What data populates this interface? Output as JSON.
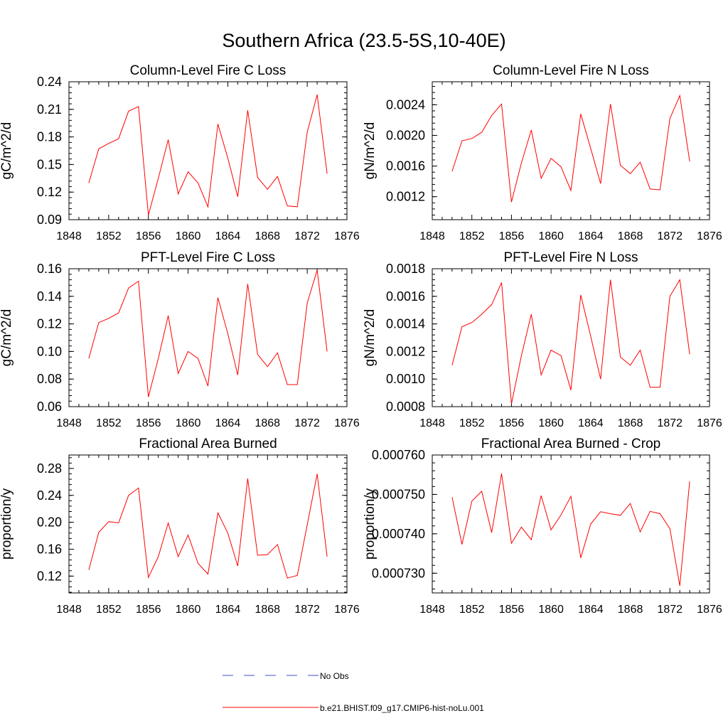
{
  "figure": {
    "title": "Southern Africa (23.5-5S,10-40E)",
    "line_color": "#ff0000",
    "obs_color": "#3c50c8"
  },
  "legend": {
    "placement": "bottom-center",
    "entries": [
      {
        "label": "No Obs",
        "style": "dashed",
        "color": "#3c50c8"
      },
      {
        "label": "b.e21.BHIST.f09_g17.CMIP6-hist-noLu.001",
        "style": "solid",
        "color": "#ff0000"
      }
    ]
  },
  "chart_data": [
    {
      "type": "line",
      "title": "Column-Level Fire C Loss",
      "ylabel": "gC/m^2/d",
      "xlabel": "",
      "xlim": [
        1848,
        1876
      ],
      "ylim": [
        0.09,
        0.24
      ],
      "xticks": [
        1848,
        1852,
        1856,
        1860,
        1864,
        1868,
        1872,
        1876
      ],
      "yticks": [
        "0.09",
        "0.12",
        "0.15",
        "0.18",
        "0.21",
        "0.24"
      ],
      "grid": false,
      "series": [
        {
          "x": [
            1850,
            1851,
            1852,
            1853,
            1854,
            1855,
            1856,
            1857,
            1858,
            1859,
            1860,
            1861,
            1862,
            1863,
            1864,
            1865,
            1866,
            1867,
            1868,
            1869,
            1870,
            1871,
            1872,
            1873,
            1874
          ],
          "y": [
            0.13,
            0.167,
            0.173,
            0.178,
            0.208,
            0.213,
            0.095,
            0.135,
            0.177,
            0.118,
            0.142,
            0.13,
            0.104,
            0.194,
            0.157,
            0.115,
            0.209,
            0.136,
            0.123,
            0.137,
            0.105,
            0.104,
            0.185,
            0.226,
            0.14
          ]
        }
      ]
    },
    {
      "type": "line",
      "title": "Column-Level Fire N Loss",
      "ylabel": "gN/m^2/d",
      "xlabel": "",
      "xlim": [
        1848,
        1876
      ],
      "ylim": [
        0.0009,
        0.0027
      ],
      "xticks": [
        1848,
        1852,
        1856,
        1860,
        1864,
        1868,
        1872,
        1876
      ],
      "yticks": [
        "0.0012",
        "0.0016",
        "0.0020",
        "0.0024"
      ],
      "grid": false,
      "series": [
        {
          "x": [
            1850,
            1851,
            1852,
            1853,
            1854,
            1855,
            1856,
            1857,
            1858,
            1859,
            1860,
            1861,
            1862,
            1863,
            1864,
            1865,
            1866,
            1867,
            1868,
            1869,
            1870,
            1871,
            1872,
            1873,
            1874
          ],
          "y": [
            0.00153,
            0.00193,
            0.00196,
            0.00204,
            0.00226,
            0.00241,
            0.00113,
            0.00164,
            0.00207,
            0.00144,
            0.0017,
            0.00159,
            0.00128,
            0.00228,
            0.00183,
            0.00137,
            0.00241,
            0.00161,
            0.0015,
            0.00165,
            0.0013,
            0.00129,
            0.00222,
            0.00252,
            0.00166
          ]
        }
      ]
    },
    {
      "type": "line",
      "title": "PFT-Level Fire C Loss",
      "ylabel": "gC/m^2/d",
      "xlabel": "",
      "xlim": [
        1848,
        1876
      ],
      "ylim": [
        0.06,
        0.16
      ],
      "xticks": [
        1848,
        1852,
        1856,
        1860,
        1864,
        1868,
        1872,
        1876
      ],
      "yticks": [
        "0.06",
        "0.08",
        "0.10",
        "0.12",
        "0.14",
        "0.16"
      ],
      "grid": false,
      "series": [
        {
          "x": [
            1850,
            1851,
            1852,
            1853,
            1854,
            1855,
            1856,
            1857,
            1858,
            1859,
            1860,
            1861,
            1862,
            1863,
            1864,
            1865,
            1866,
            1867,
            1868,
            1869,
            1870,
            1871,
            1872,
            1873,
            1874
          ],
          "y": [
            0.095,
            0.121,
            0.124,
            0.128,
            0.146,
            0.151,
            0.067,
            0.095,
            0.126,
            0.084,
            0.1,
            0.095,
            0.075,
            0.139,
            0.113,
            0.083,
            0.149,
            0.098,
            0.089,
            0.099,
            0.076,
            0.076,
            0.135,
            0.159,
            0.1
          ]
        }
      ]
    },
    {
      "type": "line",
      "title": "PFT-Level Fire N Loss",
      "ylabel": "gN/m^2/d",
      "xlabel": "",
      "xlim": [
        1848,
        1876
      ],
      "ylim": [
        0.0008,
        0.0018
      ],
      "xticks": [
        1848,
        1852,
        1856,
        1860,
        1864,
        1868,
        1872,
        1876
      ],
      "yticks": [
        "0.0008",
        "0.0010",
        "0.0012",
        "0.0014",
        "0.0016",
        "0.0018"
      ],
      "grid": false,
      "series": [
        {
          "x": [
            1850,
            1851,
            1852,
            1853,
            1854,
            1855,
            1856,
            1857,
            1858,
            1859,
            1860,
            1861,
            1862,
            1863,
            1864,
            1865,
            1866,
            1867,
            1868,
            1869,
            1870,
            1871,
            1872,
            1873,
            1874
          ],
          "y": [
            0.0011,
            0.00138,
            0.00141,
            0.00147,
            0.00154,
            0.0017,
            0.00082,
            0.00117,
            0.00147,
            0.00103,
            0.00121,
            0.00117,
            0.00092,
            0.00161,
            0.00131,
            0.001,
            0.00172,
            0.00116,
            0.0011,
            0.00121,
            0.00094,
            0.00094,
            0.0016,
            0.00172,
            0.00118
          ]
        }
      ]
    },
    {
      "type": "line",
      "title": "Fractional Area Burned",
      "ylabel": "proportion/y",
      "xlabel": "",
      "xlim": [
        1848,
        1876
      ],
      "ylim": [
        0.095,
        0.3
      ],
      "xticks": [
        1848,
        1852,
        1856,
        1860,
        1864,
        1868,
        1872,
        1876
      ],
      "yticks": [
        "0.12",
        "0.16",
        "0.20",
        "0.24",
        "0.28"
      ],
      "grid": false,
      "series": [
        {
          "x": [
            1850,
            1851,
            1852,
            1853,
            1854,
            1855,
            1856,
            1857,
            1858,
            1859,
            1860,
            1861,
            1862,
            1863,
            1864,
            1865,
            1866,
            1867,
            1868,
            1869,
            1870,
            1871,
            1872,
            1873,
            1874
          ],
          "y": [
            0.129,
            0.185,
            0.201,
            0.199,
            0.24,
            0.251,
            0.118,
            0.149,
            0.199,
            0.149,
            0.181,
            0.139,
            0.123,
            0.214,
            0.184,
            0.135,
            0.265,
            0.151,
            0.152,
            0.167,
            0.117,
            0.121,
            0.196,
            0.272,
            0.149
          ]
        }
      ]
    },
    {
      "type": "line",
      "title": "Fractional Area Burned - Crop",
      "ylabel": "proportion/y",
      "xlabel": "",
      "xlim": [
        1848,
        1876
      ],
      "ylim": [
        0.000725,
        0.00076
      ],
      "xticks": [
        1848,
        1852,
        1856,
        1860,
        1864,
        1868,
        1872,
        1876
      ],
      "yticks": [
        "0.000730",
        "0.000740",
        "0.000750",
        "0.000760"
      ],
      "grid": false,
      "series": [
        {
          "x": [
            1850,
            1851,
            1852,
            1853,
            1854,
            1855,
            1856,
            1857,
            1858,
            1859,
            1860,
            1861,
            1862,
            1863,
            1864,
            1865,
            1866,
            1867,
            1868,
            1869,
            1870,
            1871,
            1872,
            1873,
            1874
          ],
          "y": [
            0.0007493,
            0.0007373,
            0.0007483,
            0.0007508,
            0.0007403,
            0.0007553,
            0.0007376,
            0.0007417,
            0.0007385,
            0.0007497,
            0.000741,
            0.0007448,
            0.0007495,
            0.0007339,
            0.0007425,
            0.0007456,
            0.0007451,
            0.0007447,
            0.0007477,
            0.0007405,
            0.0007457,
            0.0007451,
            0.0007413,
            0.0007268,
            0.0007533
          ]
        }
      ]
    }
  ]
}
